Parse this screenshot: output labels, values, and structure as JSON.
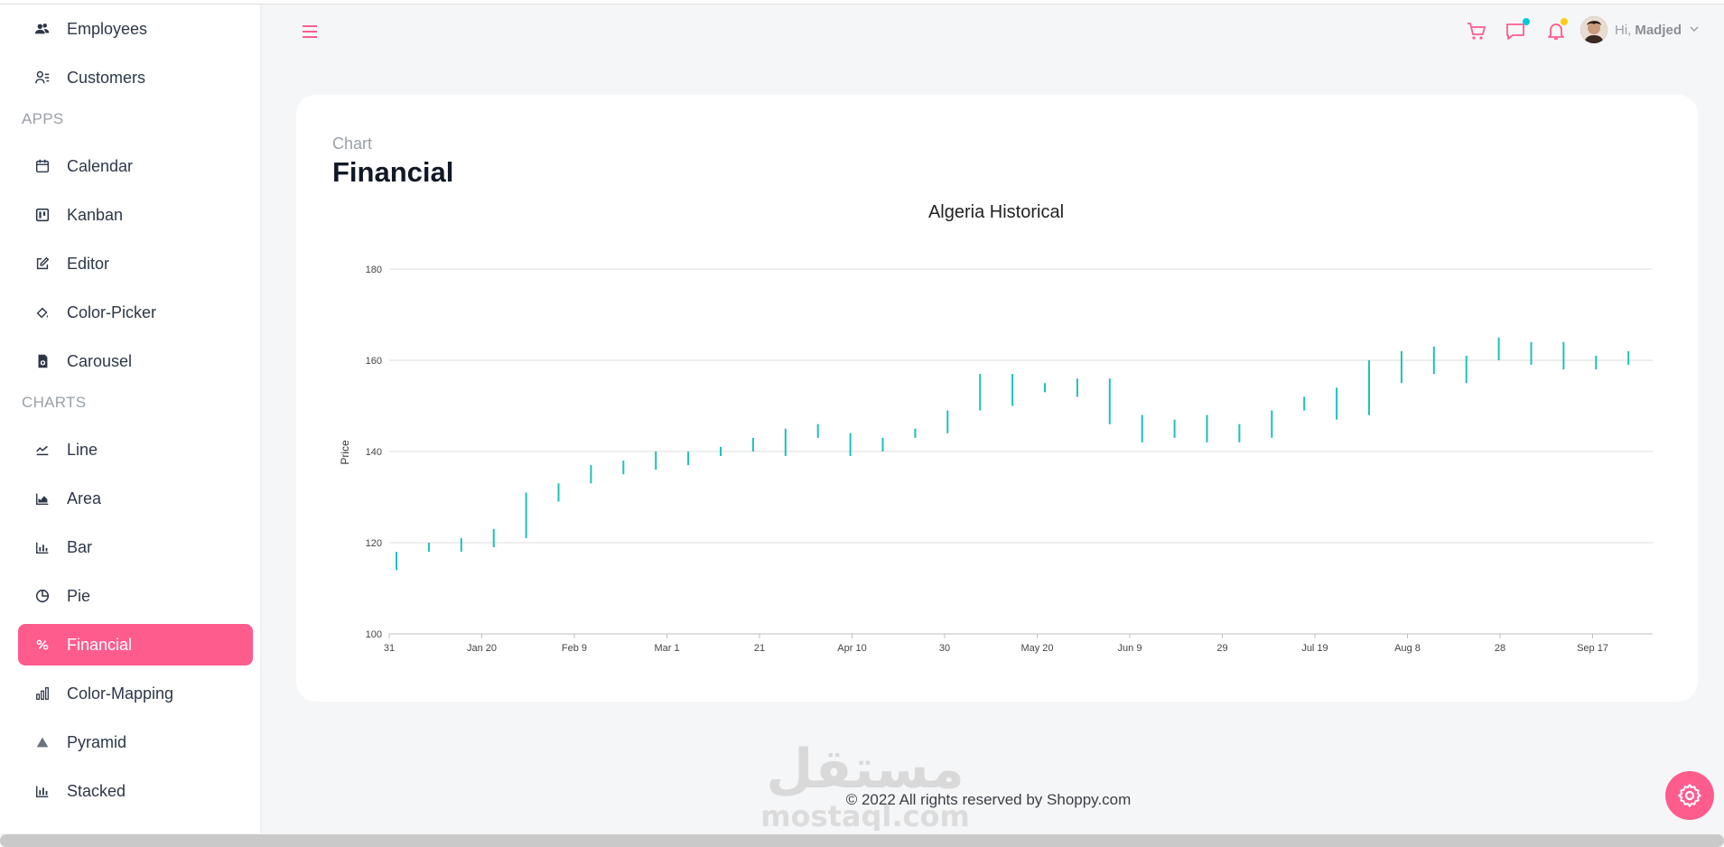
{
  "sidebar": {
    "items_top": [
      {
        "label": "Employees",
        "icon": "employees-icon"
      },
      {
        "label": "Customers",
        "icon": "customers-icon"
      }
    ],
    "apps_title": "APPS",
    "apps": [
      {
        "label": "Calendar",
        "icon": "calendar-icon"
      },
      {
        "label": "Kanban",
        "icon": "kanban-icon"
      },
      {
        "label": "Editor",
        "icon": "editor-icon"
      },
      {
        "label": "Color-Picker",
        "icon": "color-picker-icon"
      },
      {
        "label": "Carousel",
        "icon": "carousel-icon"
      }
    ],
    "charts_title": "CHARTS",
    "charts": [
      {
        "label": "Line",
        "icon": "line-chart-icon"
      },
      {
        "label": "Area",
        "icon": "area-chart-icon"
      },
      {
        "label": "Bar",
        "icon": "bar-chart-icon"
      },
      {
        "label": "Pie",
        "icon": "pie-chart-icon"
      },
      {
        "label": "Financial",
        "icon": "financial-icon",
        "active": true
      },
      {
        "label": "Color-Mapping",
        "icon": "color-mapping-icon"
      },
      {
        "label": "Pyramid",
        "icon": "pyramid-icon"
      },
      {
        "label": "Stacked",
        "icon": "stacked-chart-icon"
      }
    ]
  },
  "header": {
    "greeting": "Hi,",
    "user_name": "Madjed"
  },
  "page": {
    "subtitle": "Chart",
    "title": "Financial"
  },
  "colors": {
    "accent": "#ff5c8e",
    "series": "#1cc2b8",
    "cart_dot": "#03c9d7",
    "chat_dot": "#03c9d7",
    "bell_dot": "#fec90f"
  },
  "chart_data": {
    "type": "hilo",
    "title": "Algeria Historical",
    "ylabel": "Price",
    "ylim": [
      100,
      180
    ],
    "yticks": [
      100,
      120,
      140,
      160,
      180
    ],
    "xtick_labels": [
      "31",
      "Jan 20",
      "Feb 9",
      "Mar 1",
      "21",
      "Apr 10",
      "30",
      "May 20",
      "Jun 9",
      "29",
      "Jul 19",
      "Aug 8",
      "28",
      "Sep 17"
    ],
    "series": [
      {
        "x": [
          "2016-12-31",
          "2017-01-07",
          "2017-01-14",
          "2017-01-21",
          "2017-01-28",
          "2017-02-04",
          "2017-02-11",
          "2017-02-18",
          "2017-02-25",
          "2017-03-04",
          "2017-03-11",
          "2017-03-18",
          "2017-03-25",
          "2017-04-01",
          "2017-04-08",
          "2017-04-15",
          "2017-04-22",
          "2017-04-29",
          "2017-05-06",
          "2017-05-13",
          "2017-05-20",
          "2017-05-27",
          "2017-06-03",
          "2017-06-10",
          "2017-06-17",
          "2017-06-24",
          "2017-07-01",
          "2017-07-08",
          "2017-07-15",
          "2017-07-22",
          "2017-07-29",
          "2017-08-05",
          "2017-08-12",
          "2017-08-19",
          "2017-08-26",
          "2017-09-02",
          "2017-09-09",
          "2017-09-16",
          "2017-09-23"
        ],
        "high": [
          118,
          120,
          121,
          123,
          131,
          133,
          137,
          138,
          140,
          140,
          141,
          143,
          145,
          146,
          144,
          143,
          145,
          149,
          157,
          157,
          155,
          156,
          156,
          148,
          147,
          148,
          146,
          149,
          152,
          154,
          160,
          162,
          163,
          161,
          165,
          164,
          164,
          161,
          162
        ],
        "low": [
          114,
          118,
          118,
          119,
          121,
          129,
          133,
          135,
          136,
          137,
          139,
          140,
          139,
          143,
          139,
          140,
          143,
          144,
          149,
          150,
          153,
          152,
          146,
          142,
          143,
          142,
          142,
          143,
          149,
          147,
          148,
          155,
          157,
          155,
          160,
          159,
          158,
          158,
          159
        ]
      }
    ]
  },
  "footer": {
    "text": "© 2022 All rights reserved by Shoppy.com"
  },
  "watermark": {
    "arabic": "مستقل",
    "latin": "mostaql.com"
  }
}
